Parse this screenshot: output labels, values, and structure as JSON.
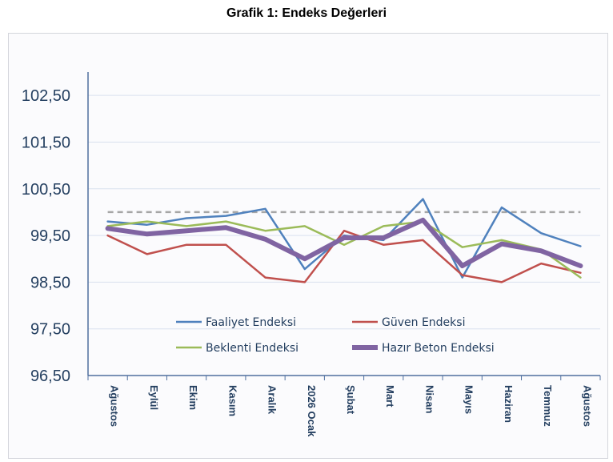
{
  "title": "Grafik 1: Endeks Değerleri",
  "chart_data": {
    "type": "line",
    "title": "Grafik 1: Endeks Değerleri",
    "xlabel": "",
    "ylabel": "",
    "ylim": [
      96.5,
      103.0
    ],
    "yticks": [
      "96,50",
      "97,50",
      "98,50",
      "99,50",
      "100,50",
      "101,50",
      "102,50"
    ],
    "ytick_values": [
      96.5,
      97.5,
      98.5,
      99.5,
      100.5,
      101.5,
      102.5
    ],
    "categories": [
      "Ağustos",
      "Eylül",
      "Ekim",
      "Kasım",
      "Aralık",
      "2026 Ocak",
      "Şubat",
      "Mart",
      "Nisan",
      "Mayıs",
      "Haziran",
      "Temmuz",
      "Ağustos"
    ],
    "grid": true,
    "legend": "bottom-center",
    "reference_line": {
      "value": 100,
      "color": "#a6a6a6"
    },
    "series": [
      {
        "name": "Faaliyet Endeksi",
        "color": "#4f81bd",
        "width": 2.5,
        "values": [
          99.8,
          99.73,
          99.87,
          99.92,
          100.07,
          98.78,
          99.5,
          99.4,
          100.28,
          98.6,
          100.1,
          99.55,
          99.27
        ]
      },
      {
        "name": "Güven Endeksi",
        "color": "#c0504d",
        "width": 2.5,
        "values": [
          99.5,
          99.1,
          99.3,
          99.3,
          98.6,
          98.5,
          99.6,
          99.3,
          99.4,
          98.65,
          98.5,
          98.9,
          98.7
        ]
      },
      {
        "name": "Beklenti Endeksi",
        "color": "#9bbb59",
        "width": 2.5,
        "values": [
          99.7,
          99.8,
          99.7,
          99.8,
          99.6,
          99.7,
          99.3,
          99.7,
          99.8,
          99.25,
          99.4,
          99.2,
          98.6
        ]
      },
      {
        "name": "Hazır Beton Endeksi",
        "color": "#8064a2",
        "width": 6,
        "values": [
          99.65,
          99.53,
          99.6,
          99.67,
          99.42,
          99.0,
          99.45,
          99.45,
          99.83,
          98.85,
          99.32,
          99.17,
          98.85
        ]
      }
    ]
  }
}
